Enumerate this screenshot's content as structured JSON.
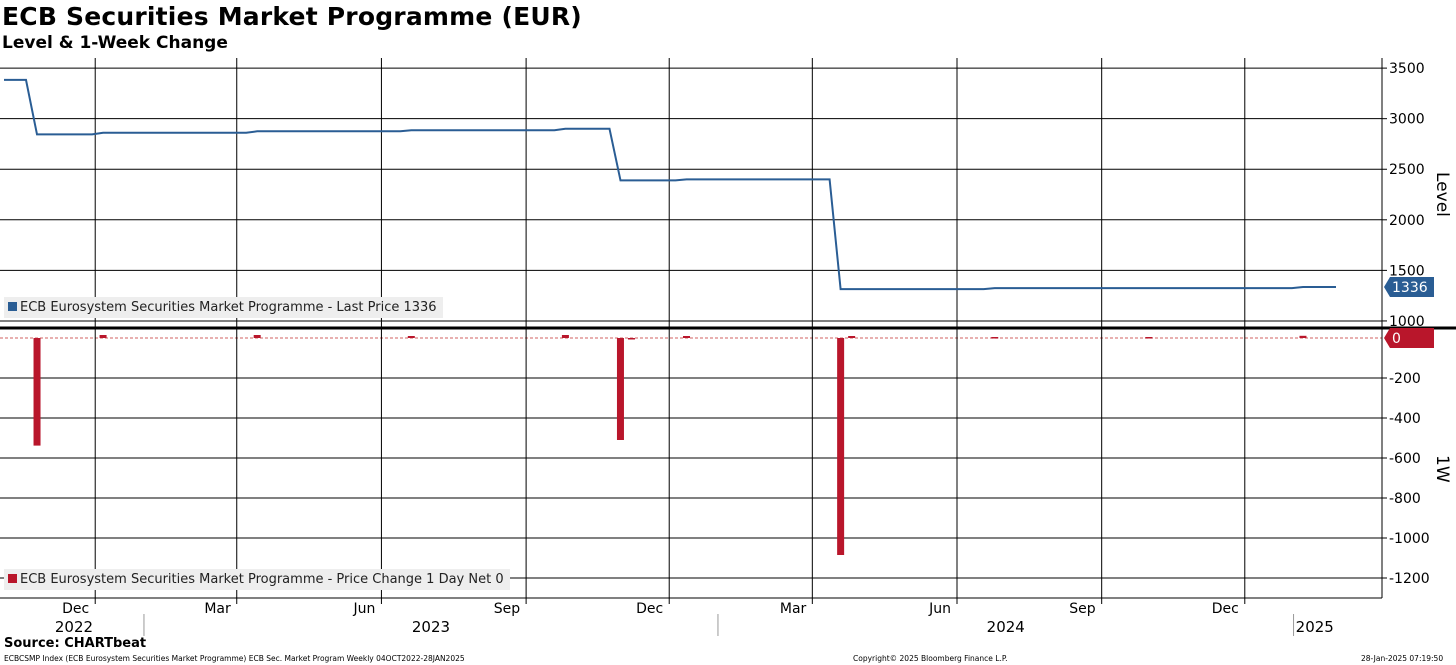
{
  "title": "ECB Securities Market Programme (EUR)",
  "subtitle": "Level & 1-Week Change",
  "source": "Source: CHARTbeat",
  "footer": {
    "left": "ECBCSMP Index (ECB Eurosystem Securities Market Programme) ECB Sec. Market Program  Weekly 04OCT2022-28JAN2025",
    "center": "Copyright© 2025 Bloomberg Finance L.P.",
    "right": "28-Jan-2025 07:19:50"
  },
  "colors": {
    "level_line": "#2a5d94",
    "change_bar": "#b9162b",
    "last_price_tag": "#2a5d94",
    "change_tag": "#b9162b",
    "legend_bg": "#eeeeee"
  },
  "chart_data": [
    {
      "type": "line",
      "panel": "top",
      "ylabel": "Level",
      "ylim": [
        950,
        3600
      ],
      "yticks": [
        1000,
        1500,
        2000,
        2500,
        3000,
        3500
      ],
      "legend": {
        "label": "ECB Eurosystem Securities Market Programme - Last Price 1336",
        "placement": "bottom-left"
      },
      "last_value_label": "1336",
      "series": [
        {
          "name": "ECB Eurosystem Securities Market Programme - Last Price",
          "points": [
            [
              "2022-10-04",
              3383
            ],
            [
              "2022-10-18",
              3383
            ],
            [
              "2022-10-25",
              2845
            ],
            [
              "2022-11-29",
              2845
            ],
            [
              "2022-12-06",
              2860
            ],
            [
              "2023-03-07",
              2860
            ],
            [
              "2023-03-14",
              2875
            ],
            [
              "2023-06-13",
              2875
            ],
            [
              "2023-06-20",
              2885
            ],
            [
              "2023-09-19",
              2885
            ],
            [
              "2023-09-26",
              2900
            ],
            [
              "2023-10-24",
              2900
            ],
            [
              "2023-10-31",
              2390
            ],
            [
              "2023-12-05",
              2390
            ],
            [
              "2023-12-12",
              2400
            ],
            [
              "2024-03-12",
              2400
            ],
            [
              "2024-03-19",
              1315
            ],
            [
              "2024-06-18",
              1315
            ],
            [
              "2024-06-25",
              1325
            ],
            [
              "2024-12-31",
              1325
            ],
            [
              "2025-01-07",
              1336
            ],
            [
              "2025-01-28",
              1336
            ]
          ]
        }
      ]
    },
    {
      "type": "bar",
      "panel": "bottom",
      "ylabel": "1W",
      "ylim": [
        -1300,
        40
      ],
      "yticks": [
        0,
        -200,
        -400,
        -600,
        -800,
        -1000,
        -1200
      ],
      "legend": {
        "label": "ECB Eurosystem Securities Market Programme - Price Change 1 Day Net 0",
        "placement": "bottom-left"
      },
      "last_value_label": "0",
      "series": [
        {
          "name": "ECB Eurosystem Securities Market Programme - Price Change 1 Day Net",
          "points": [
            [
              "2022-10-25",
              -538
            ],
            [
              "2022-12-06",
              15
            ],
            [
              "2023-03-14",
              15
            ],
            [
              "2023-06-20",
              10
            ],
            [
              "2023-09-26",
              15
            ],
            [
              "2023-10-31",
              -510
            ],
            [
              "2023-11-07",
              -5
            ],
            [
              "2023-12-12",
              10
            ],
            [
              "2024-03-19",
              -1085
            ],
            [
              "2024-03-26",
              10
            ],
            [
              "2024-06-25",
              5
            ],
            [
              "2024-10-01",
              5
            ],
            [
              "2025-01-07",
              11
            ]
          ]
        }
      ]
    }
  ],
  "x_axis": {
    "start": "2022-10-04",
    "end": "2025-01-28",
    "month_ticks": [
      {
        "date": "2022-12-01",
        "label": "Dec"
      },
      {
        "date": "2023-03-01",
        "label": "Mar"
      },
      {
        "date": "2023-06-01",
        "label": "Jun"
      },
      {
        "date": "2023-09-01",
        "label": "Sep"
      },
      {
        "date": "2023-12-01",
        "label": "Dec"
      },
      {
        "date": "2024-03-01",
        "label": "Mar"
      },
      {
        "date": "2024-06-01",
        "label": "Jun"
      },
      {
        "date": "2024-09-01",
        "label": "Sep"
      },
      {
        "date": "2024-12-01",
        "label": "Dec"
      }
    ],
    "years": [
      {
        "label": "2022",
        "start": "2022-10-04",
        "end": "2023-01-01"
      },
      {
        "label": "2023",
        "start": "2023-01-01",
        "end": "2024-01-01"
      },
      {
        "label": "2024",
        "start": "2024-01-01",
        "end": "2025-01-01"
      },
      {
        "label": "2025",
        "start": "2025-01-01",
        "end": "2025-01-28"
      }
    ]
  }
}
